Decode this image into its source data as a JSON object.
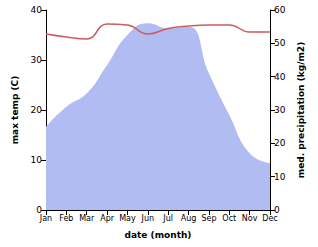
{
  "chart_data": {
    "type": "line",
    "xlabel": "date (month)",
    "ylabel": "max temp (C)",
    "y2label": "med. precipitation (kg/m2)",
    "categories": [
      "Jan",
      "Feb",
      "Mar",
      "Apr",
      "May",
      "Jun",
      "Jul",
      "Aug",
      "Sep",
      "Oct",
      "Nov",
      "Dec"
    ],
    "ylim": [
      0,
      40
    ],
    "yticks": [
      0,
      10,
      20,
      30,
      40
    ],
    "y2lim": [
      0,
      60
    ],
    "y2ticks": [
      0,
      10,
      20,
      30,
      40,
      50,
      60
    ],
    "grid": false,
    "series": [
      {
        "type": "area",
        "axis": "y2",
        "color": "#b0bcf2",
        "values": [
          25,
          31,
          35,
          43.5,
          52.5,
          56,
          54.5,
          55,
          41,
          28.5,
          17,
          14
        ]
      },
      {
        "type": "line",
        "axis": "y",
        "color": "#cd5c5c",
        "values": [
          35.2,
          34.6,
          34.2,
          37.2,
          37.0,
          35.2,
          36.3,
          36.8,
          37.0,
          37.0,
          35.6,
          35.6
        ]
      }
    ]
  }
}
